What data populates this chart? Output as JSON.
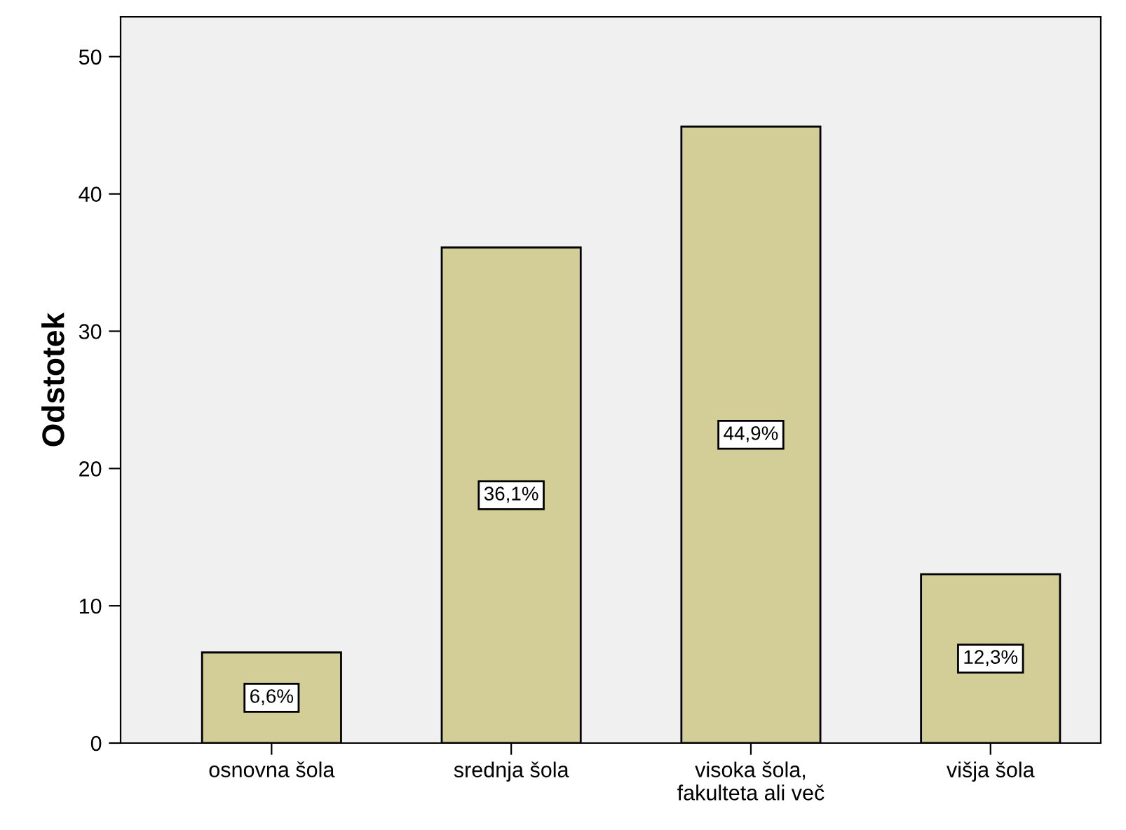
{
  "chart_data": {
    "type": "bar",
    "ylabel": "Odstotek",
    "categories": [
      "osnovna šola",
      "srednja šola",
      "visoka šola,\nfakulteta ali več",
      "višja šola"
    ],
    "values": [
      6.6,
      36.1,
      44.9,
      12.3
    ],
    "value_labels": [
      "6,6%",
      "36,1%",
      "44,9%",
      "12,3%"
    ],
    "color": "#d3ce97",
    "ylim": [
      0,
      52.9
    ],
    "yticks": [
      0,
      10,
      20,
      30,
      40,
      50
    ],
    "grid": false
  }
}
